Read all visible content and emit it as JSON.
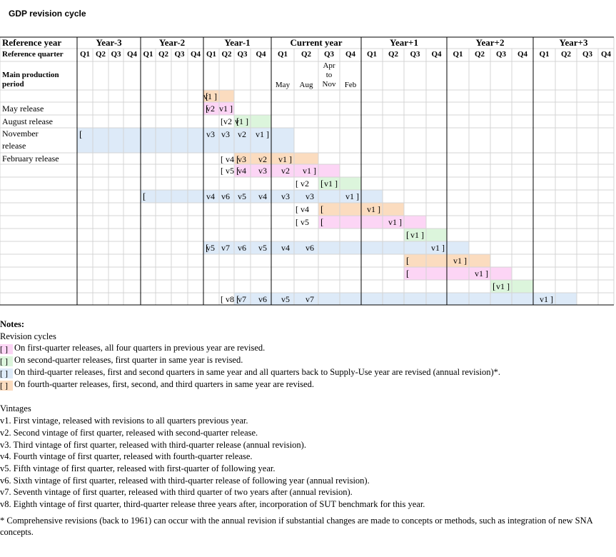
{
  "title": "GDP revision cycle",
  "colors": {
    "orange": "#fbdcbf",
    "pink": "#fcd5f5",
    "green": "#dcf5dc",
    "blue": "#ddeaf8",
    "grid": "#d4d4d4",
    "bracket": "#e05050"
  },
  "header": {
    "col_label": "Reference year",
    "quarter_label": "Reference quarter",
    "period_label_1": "Main production",
    "period_label_2": "period",
    "years": [
      "Year-3",
      "Year-2",
      "Year-1",
      "Current year",
      "Year+1",
      "Year+2",
      "Year+3"
    ],
    "quarters": [
      "Q1",
      "Q2",
      "Q3",
      "Q4"
    ],
    "months": [
      "May",
      "Aug",
      "Apr to Nov",
      "Feb"
    ],
    "apr": "Apr",
    "to": "to",
    "nov": "Nov"
  },
  "row_labels": {
    "may": "May release",
    "august": "August release",
    "november_1": "November",
    "november_2": "release",
    "february": "February release"
  },
  "rows": [
    [
      {
        "c": 10,
        "t": "v1 ]"
      }
    ],
    [
      {
        "c": 10,
        "t": "v2"
      },
      {
        "c": 11,
        "t": "v1 ]"
      }
    ],
    [
      {
        "c": 11,
        "t": "[v2"
      },
      {
        "c": 12,
        "t": "v1 ]"
      }
    ],
    [
      {
        "c": 10,
        "t": "v3"
      },
      {
        "c": 11,
        "t": "v3"
      },
      {
        "c": 12,
        "t": "v2"
      },
      {
        "c": 13,
        "t": "v1 ]"
      }
    ],
    [
      {
        "c": 11,
        "t": "[ v4"
      },
      {
        "c": 12,
        "t": "v3"
      },
      {
        "c": 13,
        "t": "v2"
      },
      {
        "c": 14,
        "t": "v1 ]"
      }
    ],
    [
      {
        "c": 11,
        "t": "[ v5"
      },
      {
        "c": 12,
        "t": "v4"
      },
      {
        "c": 13,
        "t": "v3"
      },
      {
        "c": 14,
        "t": "v2"
      },
      {
        "c": 15,
        "t": "v1 ]"
      }
    ],
    [
      {
        "c": 15,
        "t": "[ v2"
      },
      {
        "c": 16,
        "t": "v1 ]"
      }
    ],
    [
      {
        "c": 10,
        "t": "v4"
      },
      {
        "c": 11,
        "t": "v6"
      },
      {
        "c": 12,
        "t": "v5"
      },
      {
        "c": 13,
        "t": "v4"
      },
      {
        "c": 14,
        "t": "v3"
      },
      {
        "c": 15,
        "t": "v3"
      },
      {
        "c": 17,
        "t": "v1 ]"
      }
    ],
    [
      {
        "c": 15,
        "t": "[ v4"
      },
      {
        "c": 18,
        "t": "v1 ]"
      }
    ],
    [
      {
        "c": 15,
        "t": "[ v5"
      },
      {
        "c": 19,
        "t": "v1 ]"
      }
    ],
    [
      {
        "c": 20,
        "t": "v1 ]"
      }
    ],
    [
      {
        "c": 10,
        "t": "v5"
      },
      {
        "c": 11,
        "t": "v7"
      },
      {
        "c": 12,
        "t": "v6"
      },
      {
        "c": 13,
        "t": "v5"
      },
      {
        "c": 14,
        "t": "v4"
      },
      {
        "c": 15,
        "t": "v6"
      },
      {
        "c": 21,
        "t": "v1 ]"
      }
    ],
    [
      {
        "c": 22,
        "t": "v1 ]"
      }
    ],
    [
      {
        "c": 23,
        "t": "v1 ]"
      }
    ],
    [
      {
        "c": 24,
        "t": "v1 ]"
      }
    ],
    [
      {
        "c": 11,
        "t": "[ v8"
      },
      {
        "c": 12,
        "t": "v7"
      },
      {
        "c": 13,
        "t": "v6"
      },
      {
        "c": 14,
        "t": "v5"
      },
      {
        "c": 15,
        "t": "v7"
      },
      {
        "c": 26,
        "t": "v1 ]"
      }
    ]
  ],
  "notes": {
    "heading": "Notes:",
    "cycles_heading": "Revision cycles",
    "cycles": [
      {
        "color": "pink",
        "text": "On first-quarter releases, all four quarters in previous year are revised."
      },
      {
        "color": "green",
        "text": "On second-quarter releases, first quarter in same year is revised."
      },
      {
        "color": "blue",
        "text": "On third-quarter releases, first and second quarters in same year and all quarters back to Supply-Use year are revised (annual revision)*."
      },
      {
        "color": "orange",
        "text": "On fourth-quarter releases, first, second, and third quarters in same year are revised."
      }
    ],
    "vintages_heading": "Vintages",
    "vintages": [
      "v1. First vintage, released with revisions to all quarters previous year.",
      "v2. Second vintage of first quarter, released with second-quarter release.",
      "v3. Third vintage of first quarter, released with third-quarter release (annual revision).",
      "v4. Fourth vintage of first quarter, released with fourth-quarter release.",
      "v5. Fifth vintage of first quarter, released with first-quarter of following year.",
      "v6. Sixth vintage of first quarter, released with third-quarter release of following year (annual revision).",
      "v7. Seventh vintage of first quarter, released with third quarter of two years after (annual revision).",
      "v8. Eighth vintage of first quarter, third-quarter release three years after, incorporation of SUT benchmark for this year."
    ],
    "footnote": "* Comprehensive revisions (back to 1961) can occur with the annual revision if substantial changes are made to concepts or methods, such as integration of new SNA concepts."
  }
}
